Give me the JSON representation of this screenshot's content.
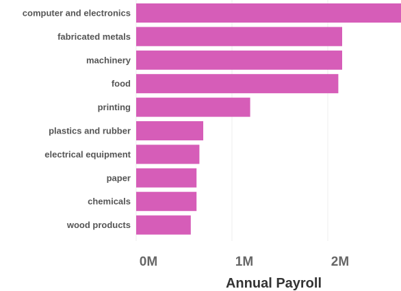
{
  "chart_data": {
    "type": "bar",
    "orientation": "horizontal",
    "title": "",
    "xlabel": "Annual Payroll",
    "ylabel": "",
    "categories": [
      "computer and electronics",
      "fabricated metals",
      "machinery",
      "food",
      "printing",
      "plastics and rubber",
      "electrical equipment",
      "paper",
      "chemicals",
      "wood products"
    ],
    "values": [
      2800000,
      2150000,
      2150000,
      2110000,
      1190000,
      700000,
      660000,
      630000,
      630000,
      570000
    ],
    "xlim": [
      0,
      2750000
    ],
    "x_ticks": [
      0,
      1000000,
      2000000
    ],
    "x_tick_labels": [
      "0M",
      "1M",
      "2M"
    ],
    "grid": true,
    "legend": "none",
    "bar_color": "#d65db8"
  }
}
